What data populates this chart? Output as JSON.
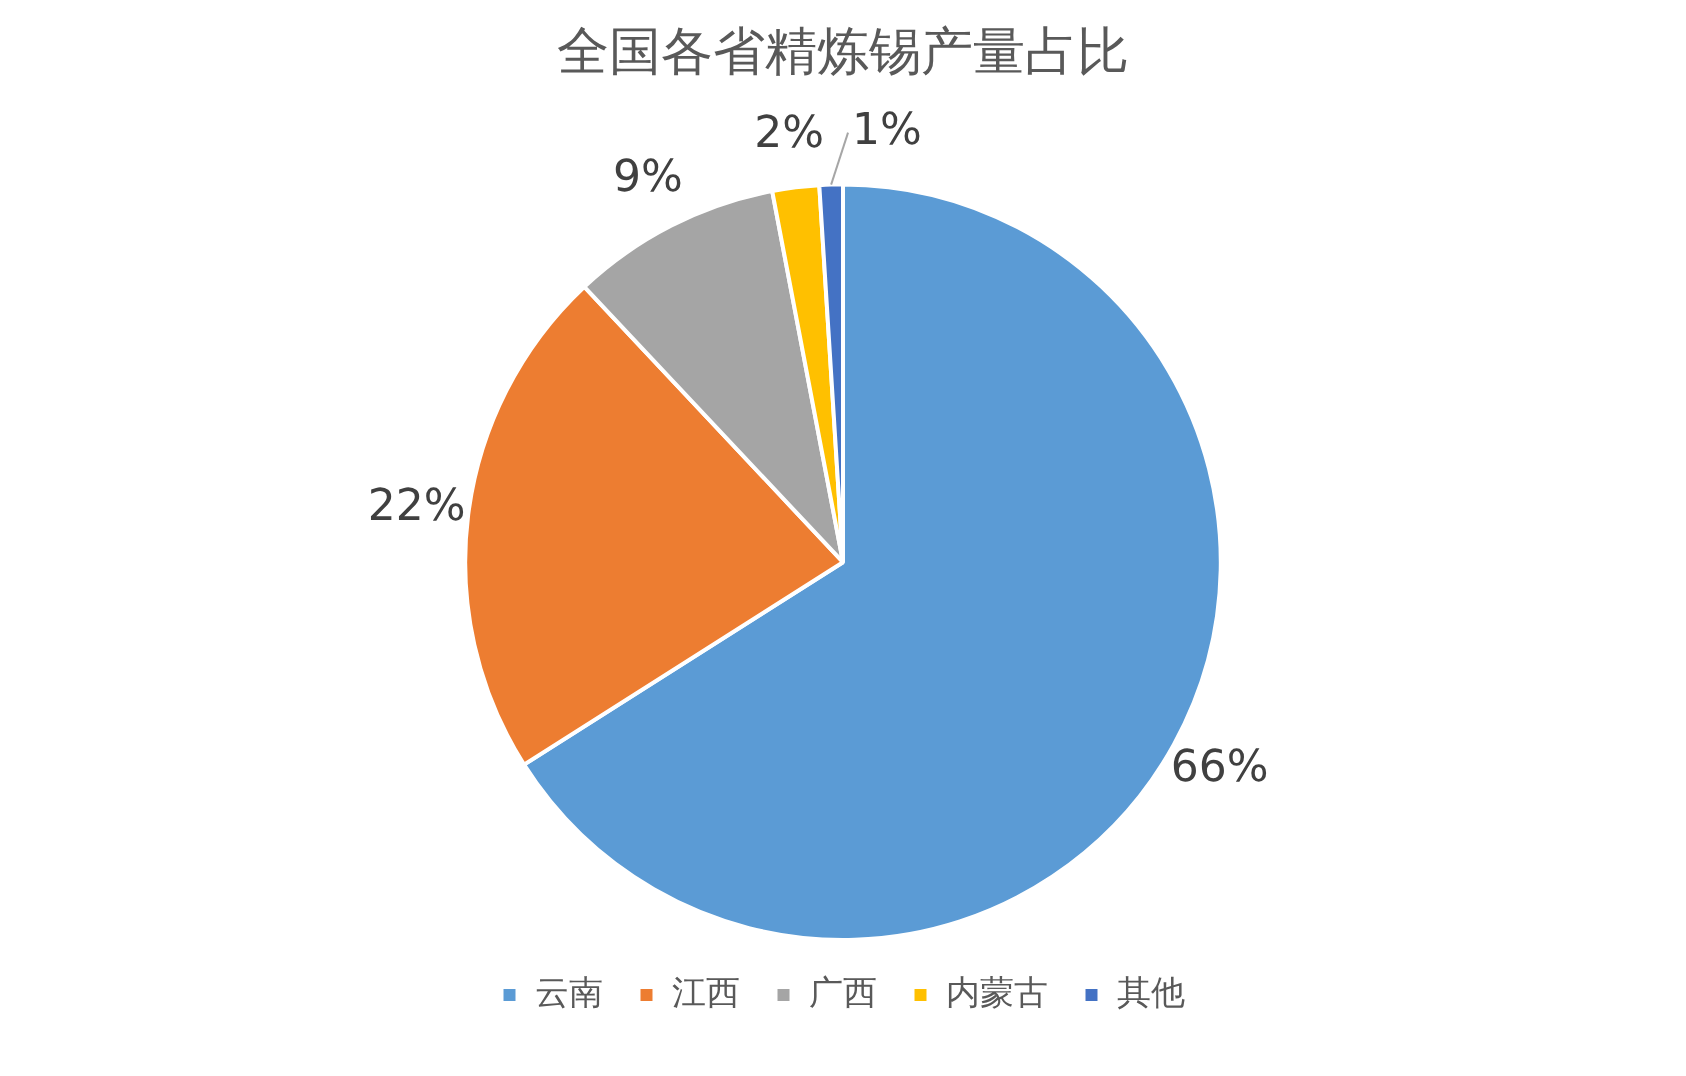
{
  "chart_data": {
    "type": "pie",
    "title": "全国各省精炼锡产量占比",
    "categories": [
      "云南",
      "江西",
      "广西",
      "内蒙古",
      "其他"
    ],
    "values": [
      66,
      22,
      9,
      2,
      1
    ],
    "colors": [
      "#5b9bd5",
      "#ed7d31",
      "#a5a5a5",
      "#ffc000",
      "#4472c4"
    ],
    "value_labels": [
      "66%",
      "22%",
      "9%",
      "2%",
      "1%"
    ],
    "legend": "bottom"
  }
}
